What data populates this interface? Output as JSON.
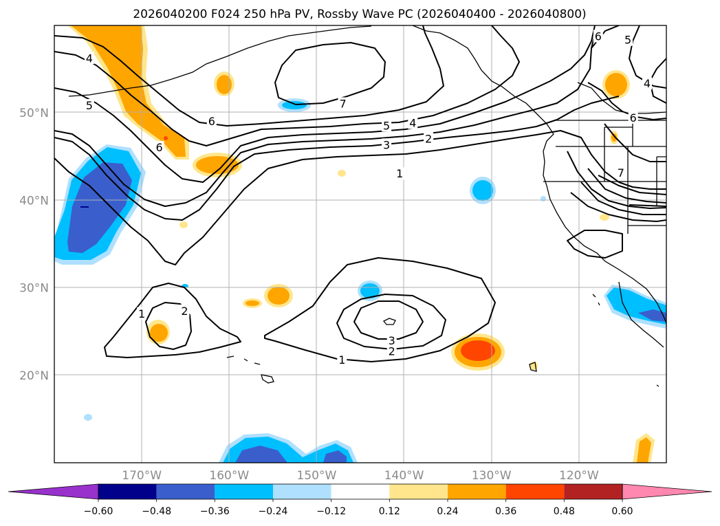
{
  "chart_data": {
    "type": "contour map",
    "title": "2026040200 F024 250 hPa PV, Rossby Wave PC (2026040400 - 2026040800)",
    "latitude_ticks": [
      {
        "lat": 50,
        "label": "50°N"
      },
      {
        "lat": 40,
        "label": "40°N"
      },
      {
        "lat": 30,
        "label": "30°N"
      },
      {
        "lat": 20,
        "label": "20°N"
      }
    ],
    "longitude_ticks": [
      {
        "lon": -170,
        "label": "170°W"
      },
      {
        "lon": -160,
        "label": "160°W"
      },
      {
        "lon": -150,
        "label": "150°W"
      },
      {
        "lon": -140,
        "label": "140°W"
      },
      {
        "lon": -130,
        "label": "130°W"
      },
      {
        "lon": -120,
        "label": "120°W"
      }
    ],
    "lat_range": [
      10,
      60
    ],
    "lon_range": [
      -180,
      -110
    ],
    "contour_labels": [
      {
        "text": "4",
        "lon": -176,
        "lat": 56.2
      },
      {
        "text": "5",
        "lon": -176,
        "lat": 50.8
      },
      {
        "text": "6",
        "lon": -162,
        "lat": 49.0
      },
      {
        "text": "6",
        "lon": -168,
        "lat": 46.0
      },
      {
        "text": "7",
        "lon": -147,
        "lat": 51.0
      },
      {
        "text": "5",
        "lon": -142,
        "lat": 48.5
      },
      {
        "text": "4",
        "lon": -139,
        "lat": 48.8
      },
      {
        "text": "3",
        "lon": -142,
        "lat": 46.3
      },
      {
        "text": "2",
        "lon": -137.2,
        "lat": 47.0
      },
      {
        "text": "1",
        "lon": -140.5,
        "lat": 43.0
      },
      {
        "text": "2",
        "lon": -165.1,
        "lat": 27.3
      },
      {
        "text": "1",
        "lon": -170,
        "lat": 27.0
      },
      {
        "text": "3",
        "lon": -141.4,
        "lat": 23.9
      },
      {
        "text": "2",
        "lon": -141.4,
        "lat": 22.7
      },
      {
        "text": "1",
        "lon": -147.1,
        "lat": 21.7
      },
      {
        "text": "6",
        "lon": -117.8,
        "lat": 58.7
      },
      {
        "text": "5",
        "lon": -114.4,
        "lat": 58.3
      },
      {
        "text": "4",
        "lon": -112.2,
        "lat": 53.3
      },
      {
        "text": "6",
        "lon": -113.8,
        "lat": 49.4
      },
      {
        "text": "7",
        "lon": -115.2,
        "lat": 43.1
      }
    ],
    "shading_levels": [
      -0.6,
      -0.48,
      -0.36,
      -0.24,
      -0.12,
      0.12,
      0.24,
      0.36,
      0.48,
      0.6
    ],
    "colorbar_labels": [
      "−0.60",
      "−0.48",
      "−0.36",
      "−0.24",
      "−0.12",
      "0.12",
      "0.24",
      "0.36",
      "0.48",
      "0.60"
    ],
    "colorbar_colors": [
      "#9932cc",
      "#00008b",
      "#3a5fcd",
      "#00bfff",
      "#afe0ff",
      "#ffffff",
      "#ffe68c",
      "#ffa500",
      "#ff4500",
      "#b22222",
      "#ff88b0"
    ]
  }
}
